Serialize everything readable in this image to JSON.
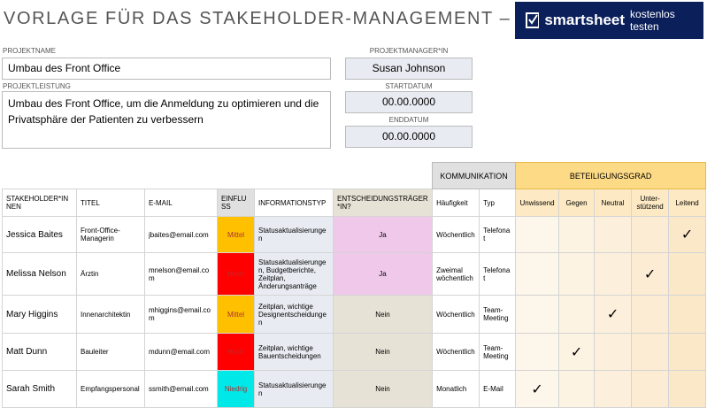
{
  "header": {
    "title": "VORLAGE FÜR DAS STAKEHOLDER-MANAGEMENT – BEISPIEL",
    "brand": "smartsheet",
    "cta": "kostenlos testen"
  },
  "project": {
    "name_label": "PROJEKTNAME",
    "name": "Umbau des Front Office",
    "manager_label": "PROJEKTMANAGER*IN",
    "manager": "Susan Johnson",
    "scope_label": "PROJEKTLEISTUNG",
    "scope": "Umbau des Front Office, um die Anmeldung zu optimieren und die Privatsphäre der Patienten zu verbessern",
    "start_label": "STARTDATUM",
    "start": "00.00.0000",
    "end_label": "ENDDATUM",
    "end": "00.00.0000"
  },
  "table": {
    "groups": [
      "KOMMUNIKATION",
      "BETEILIGUNGSGRAD"
    ],
    "headers": [
      "STAKEHOLDER*INNEN",
      "TITEL",
      "E-MAIL",
      "EINFLUSS",
      "INFORMATIONSTYP",
      "ENTSCHEIDUNGSTRÄGER*IN?",
      "Häufigkeit",
      "Typ",
      "Unwissend",
      "Gegen",
      "Neutral",
      "Unter-stützend",
      "Leitend"
    ],
    "influence_colors": {
      "Hoch": "#ff0000",
      "Mittel": "#ffc000",
      "Niedrig": "#00e8e8"
    },
    "decision_colors": {
      "Ja": "#f0c9ea",
      "Nein": "#e7e2d6"
    },
    "rows": [
      {
        "stakeholder": "Jessica Baites",
        "title": "Front-Office-Managerin",
        "email": "jbaites@email.com",
        "influence": "Mittel",
        "info_type": "Statusaktualisierungen",
        "decision_maker": "Ja",
        "frequency": "Wöchentlich",
        "channel": "Telefonat",
        "engagement": [
          null,
          null,
          null,
          null,
          "✓"
        ]
      },
      {
        "stakeholder": "Melissa Nelson",
        "title": "Ärztin",
        "email": "mnelson@email.com",
        "influence": "Hoch",
        "info_type": "Statusaktualisierungen, Budgetberichte, Zeitplan, Änderungsanträge",
        "decision_maker": "Ja",
        "frequency": "Zweimal wöchentlich",
        "channel": "Telefonat",
        "engagement": [
          null,
          null,
          null,
          "✓",
          null
        ]
      },
      {
        "stakeholder": "Mary Higgins",
        "title": "Innenarchitektin",
        "email": "mhiggins@email.com",
        "influence": "Mittel",
        "info_type": "Zeitplan, wichtige Designentscheidungen",
        "decision_maker": "Nein",
        "frequency": "Wöchentlich",
        "channel": "Team-Meeting",
        "engagement": [
          null,
          null,
          "✓",
          null,
          null
        ]
      },
      {
        "stakeholder": "Matt Dunn",
        "title": "Bauleiter",
        "email": "mdunn@email.com",
        "influence": "Hoch",
        "info_type": "Zeitplan, wichtige Bauentscheidungen",
        "decision_maker": "Nein",
        "frequency": "Wöchentlich",
        "channel": "Team-Meeting",
        "engagement": [
          null,
          "✓",
          null,
          null,
          null
        ]
      },
      {
        "stakeholder": "Sarah Smith",
        "title": "Empfangspersonal",
        "email": "ssmith@email.com",
        "influence": "Niedrig",
        "info_type": "Statusaktualisierungen",
        "decision_maker": "Nein",
        "frequency": "Monatlich",
        "channel": "E-Mail",
        "engagement": [
          "✓",
          null,
          null,
          null,
          null
        ]
      }
    ]
  }
}
